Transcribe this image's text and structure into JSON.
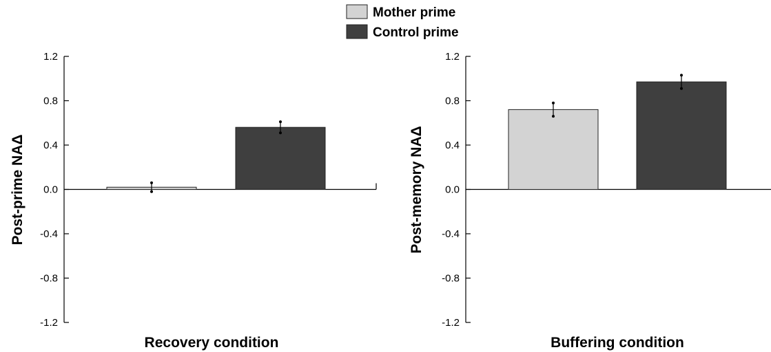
{
  "legend": {
    "placement": "top-center",
    "items": [
      {
        "label": "Mother prime",
        "color": "#d3d3d3"
      },
      {
        "label": "Control prime",
        "color": "#3f3f3f"
      }
    ]
  },
  "colors": {
    "mother": "#d3d3d3",
    "control": "#3f3f3f",
    "axis": "#000000"
  },
  "chart_data": [
    {
      "type": "bar",
      "xlabel": "Recovery condition",
      "ylabel": "Post-prime NAΔ",
      "ylim": [
        -1.2,
        1.2
      ],
      "yticks": [
        "1.2",
        "0.8",
        "0.4",
        "0.0",
        "-0.4",
        "-0.8",
        "-1.2"
      ],
      "grid": false,
      "series": [
        {
          "name": "Mother prime",
          "values": [
            0.02
          ],
          "error": [
            0.04
          ]
        },
        {
          "name": "Control prime",
          "values": [
            0.56
          ],
          "error": [
            0.05
          ]
        }
      ]
    },
    {
      "type": "bar",
      "xlabel": "Buffering condition",
      "ylabel": "Post-memory NAΔ",
      "ylim": [
        -1.2,
        1.2
      ],
      "yticks": [
        "1.2",
        "0.8",
        "0.4",
        "0.0",
        "-0.4",
        "-0.8",
        "-1.2"
      ],
      "grid": false,
      "series": [
        {
          "name": "Mother prime",
          "values": [
            0.72
          ],
          "error": [
            0.06
          ]
        },
        {
          "name": "Control prime",
          "values": [
            0.97
          ],
          "error": [
            0.06
          ]
        }
      ]
    }
  ]
}
